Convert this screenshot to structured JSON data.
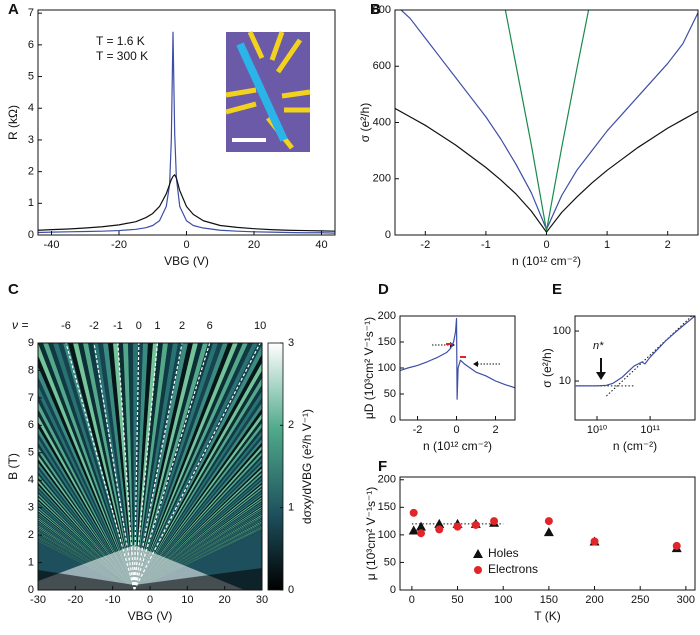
{
  "chart_data": [
    {
      "panel": "A",
      "type": "line",
      "xlabel": "VBG (V)",
      "ylabel": "R (kΩ)",
      "xlim": [
        -44,
        44
      ],
      "ylim": [
        0,
        7.1
      ],
      "xticks": [
        -40,
        -20,
        0,
        20,
        40
      ],
      "yticks": [
        0,
        1,
        2,
        3,
        4,
        5,
        6,
        7
      ],
      "x": [
        -44,
        -40,
        -35,
        -30,
        -25,
        -20,
        -15,
        -12,
        -10,
        -8,
        -6,
        -5,
        -4.5,
        -4,
        -3.5,
        -3,
        -2,
        0,
        2,
        5,
        10,
        15,
        20,
        25,
        30,
        35,
        40,
        44
      ],
      "series": [
        {
          "name": "T = 1.6 K",
          "color": "#3d4ea6",
          "values": [
            0.08,
            0.09,
            0.1,
            0.11,
            0.12,
            0.14,
            0.18,
            0.23,
            0.3,
            0.45,
            0.9,
            1.6,
            3.0,
            6.4,
            3.2,
            1.8,
            0.9,
            0.45,
            0.3,
            0.22,
            0.15,
            0.12,
            0.1,
            0.09,
            0.08,
            0.07,
            0.07,
            0.06
          ]
        },
        {
          "name": "T = 300 K",
          "color": "#111111",
          "values": [
            0.15,
            0.17,
            0.19,
            0.22,
            0.26,
            0.32,
            0.42,
            0.55,
            0.68,
            0.9,
            1.3,
            1.6,
            1.75,
            1.85,
            1.9,
            1.8,
            1.4,
            0.9,
            0.65,
            0.45,
            0.3,
            0.24,
            0.2,
            0.17,
            0.15,
            0.14,
            0.13,
            0.12
          ]
        }
      ],
      "legend": "upper left"
    },
    {
      "panel": "B",
      "type": "line",
      "xlabel": "n (10¹² cm⁻²)",
      "ylabel": "σ (e²/h)",
      "xlim": [
        -2.5,
        2.5
      ],
      "ylim": [
        0,
        800
      ],
      "xticks": [
        -2,
        -1,
        0,
        1,
        2
      ],
      "yticks": [
        0,
        200,
        400,
        600,
        800
      ],
      "x": [
        -2.5,
        -2.25,
        -2,
        -1.75,
        -1.5,
        -1.25,
        -1,
        -0.75,
        -0.5,
        -0.25,
        0,
        0.25,
        0.5,
        0.75,
        1,
        1.25,
        1.5,
        1.75,
        2,
        2.25,
        2.5
      ],
      "series": [
        {
          "color": "#111111",
          "values": [
            450,
            420,
            390,
            355,
            320,
            280,
            240,
            195,
            145,
            85,
            10,
            80,
            135,
            185,
            230,
            270,
            310,
            345,
            380,
            410,
            440
          ]
        },
        {
          "color": "#3d4ea6",
          "values": [
            820,
            770,
            700,
            630,
            560,
            490,
            420,
            340,
            250,
            150,
            20,
            140,
            230,
            300,
            370,
            430,
            490,
            550,
            610,
            680,
            790
          ]
        },
        {
          "color": "#1a8a4a",
          "values": [
            null,
            null,
            null,
            null,
            null,
            null,
            null,
            880,
            600,
            320,
            15,
            310,
            590,
            860,
            null,
            null,
            null,
            null,
            null,
            null,
            null
          ]
        }
      ]
    },
    {
      "panel": "C",
      "type": "heatmap",
      "xlabel": "VBG (V)",
      "ylabel": "B (T)",
      "xlim": [
        -30,
        30
      ],
      "ylim": [
        0,
        9
      ],
      "xticks": [
        -30,
        -20,
        -10,
        0,
        10,
        20,
        30
      ],
      "yticks": [
        0,
        1,
        2,
        3,
        4,
        5,
        6,
        7,
        8,
        9
      ],
      "colorbar": {
        "label": "dσxy/dVBG (e²/h V⁻¹)",
        "lim": [
          0,
          3
        ],
        "ticks": [
          0,
          1,
          2,
          3
        ]
      },
      "filling_factor_label": "ν =",
      "filling_factors": {
        "values": [
          -6,
          -2,
          -1,
          0,
          1,
          2,
          6,
          10
        ],
        "x": [
          -22.5,
          -15,
          -8.6,
          -3,
          2,
          8.6,
          16,
          29.5
        ]
      }
    },
    {
      "panel": "D",
      "type": "line",
      "xlabel": "n (10¹² cm⁻²)",
      "ylabel": "μD (10³cm² V⁻¹s⁻¹)",
      "xlim": [
        -2.9,
        3
      ],
      "ylim": [
        0,
        200
      ],
      "xticks": [
        -2,
        0,
        2
      ],
      "yticks": [
        0,
        50,
        100,
        150,
        200
      ],
      "x": [
        -2.9,
        -2.5,
        -2,
        -1.5,
        -1,
        -0.5,
        -0.3,
        -0.15,
        -0.05,
        0,
        0.03,
        0.08,
        0.2,
        0.4,
        0.7,
        1,
        1.5,
        2,
        2.5,
        3
      ],
      "series": [
        {
          "color": "#3d4ea6",
          "values": [
            95,
            100,
            105,
            112,
            120,
            130,
            138,
            150,
            170,
            195,
            40,
            100,
            115,
            108,
            100,
            92,
            85,
            75,
            68,
            62
          ]
        }
      ]
    },
    {
      "panel": "E",
      "type": "line",
      "xscale": "log",
      "yscale": "log",
      "xlabel": "n (cm⁻²)",
      "ylabel": "σ (e²/h)",
      "xlim": [
        3850000000,
        700000000000
      ],
      "ylim": [
        1.66,
        200
      ],
      "xticks": [
        {
          "value": 10000000000,
          "label": "10¹⁰"
        },
        {
          "value": 100000000000,
          "label": "10¹¹"
        }
      ],
      "yticks": [
        10,
        100
      ],
      "x": [
        4000000000,
        10000000000,
        15000000000,
        20000000000,
        30000000000,
        50000000000,
        70000000000,
        80000000000,
        100000000000,
        200000000000,
        300000000000,
        500000000000,
        700000000000
      ],
      "series": [
        {
          "color": "#3d4ea6",
          "values": [
            8,
            8,
            8.2,
            9,
            12,
            20,
            24,
            22,
            30,
            65,
            95,
            150,
            200
          ]
        }
      ],
      "guide_lines": [
        {
          "x": [
            4000000000,
            50000000000
          ],
          "y": [
            8,
            8
          ]
        },
        {
          "x": [
            15000000000,
            700000000000
          ],
          "y": [
            5,
            230
          ]
        }
      ],
      "annotation": "n*"
    },
    {
      "panel": "F",
      "type": "scatter",
      "xlabel": "T (K)",
      "ylabel": "μ (10³cm² V⁻¹s⁻¹)",
      "xlim": [
        -13,
        310
      ],
      "ylim": [
        0,
        205
      ],
      "xticks": [
        0,
        50,
        100,
        150,
        200,
        250,
        300
      ],
      "yticks": [
        0,
        50,
        100,
        150,
        200
      ],
      "x": [
        2,
        10,
        30,
        50,
        70,
        90,
        150,
        200,
        290
      ],
      "series": [
        {
          "name": "Holes",
          "color": "#111111",
          "marker": "triangle",
          "values": [
            108,
            115,
            120,
            120,
            120,
            122,
            105,
            88,
            76
          ]
        },
        {
          "name": "Electrons",
          "color": "#e0262a",
          "marker": "circle",
          "values": [
            140,
            103,
            110,
            115,
            118,
            125,
            125,
            88,
            80
          ]
        }
      ],
      "guide_lines": [
        {
          "x": [
            0,
            100
          ],
          "y": [
            120,
            120
          ]
        }
      ],
      "legend": "lower left"
    }
  ]
}
